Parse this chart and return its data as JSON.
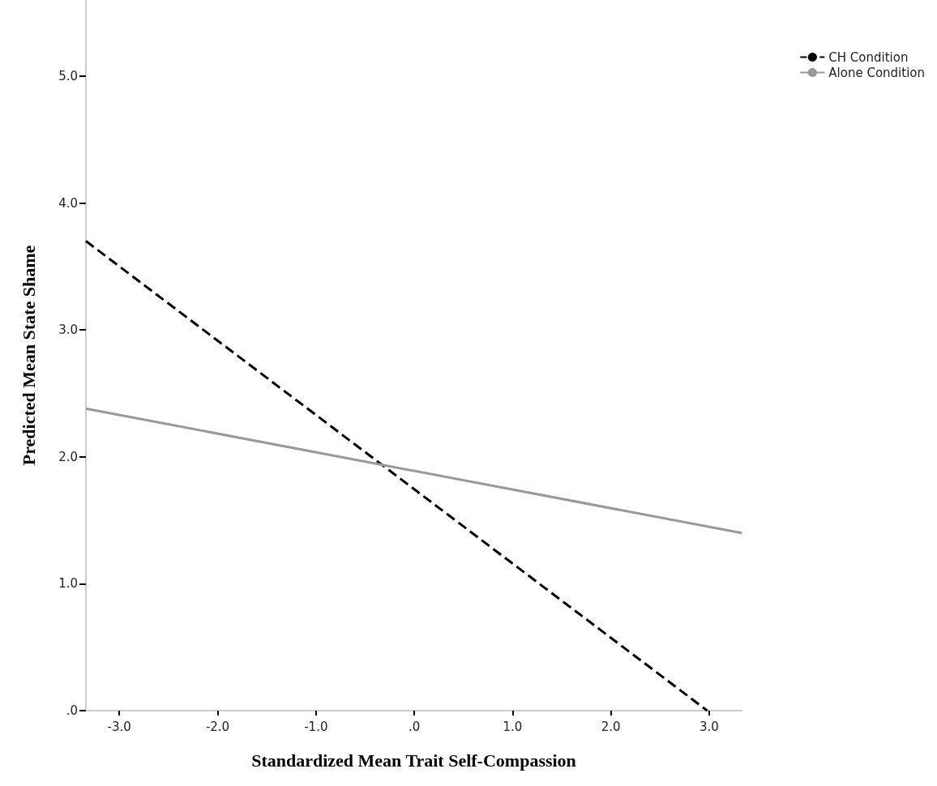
{
  "chart_data": {
    "type": "line",
    "xlabel": "Standardized Mean Trait Self-Compassion",
    "ylabel": "Predicted Mean State Shame",
    "series": [
      {
        "name": "CH Condition",
        "color": "#000000",
        "line_style": "dashed",
        "x": [
          -3.34,
          2.98
        ],
        "values": [
          3.7,
          0
        ]
      },
      {
        "name": "Alone Condition",
        "color": "#999999",
        "line_style": "solid",
        "x": [
          -3.34,
          3.33
        ],
        "values": [
          2.38,
          1.4
        ]
      }
    ],
    "xlim": [
      -3.34,
      3.33
    ],
    "xticks": [
      {
        "value": -3,
        "label": "-3.0"
      },
      {
        "value": -2,
        "label": "-2.0"
      },
      {
        "value": -1,
        "label": "-1.0"
      },
      {
        "value": 0,
        "label": ".0"
      },
      {
        "value": 1,
        "label": "1.0"
      },
      {
        "value": 2,
        "label": "2.0"
      },
      {
        "value": 3,
        "label": "3.0"
      }
    ],
    "ylim": [
      0,
      5.6
    ],
    "yticks": [
      {
        "value": 0,
        "label": ".0"
      },
      {
        "value": 1,
        "label": "1.0"
      },
      {
        "value": 2,
        "label": "2.0"
      },
      {
        "value": 3,
        "label": "3.0"
      },
      {
        "value": 4,
        "label": "4.0"
      },
      {
        "value": 5,
        "label": "5.0"
      }
    ],
    "grid": false,
    "legend": "top right",
    "marker": "none"
  }
}
